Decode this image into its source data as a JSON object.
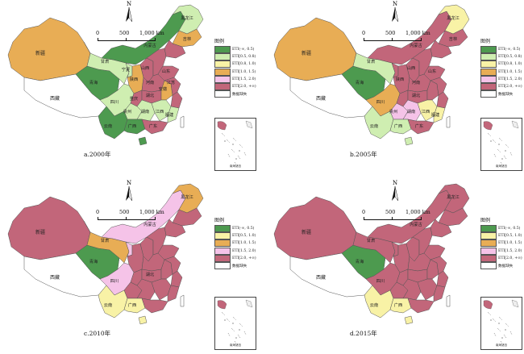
{
  "colors": {
    "class_a": "#4d9a4f",
    "class_b": "#cfeeb1",
    "class_c": "#f8f2a6",
    "class_d": "#e8ad55",
    "class_e": "#f5c3e8",
    "class_f": "#c2667a",
    "missing": "#ffffff",
    "water": "#f2f2f2"
  },
  "scale": {
    "zero": "0",
    "mid": "500",
    "end": "1,000 km"
  },
  "north": "N",
  "inset_title": "南海诸岛",
  "panels": [
    {
      "caption": "a.2000年",
      "legend_title": "图例",
      "legend": [
        {
          "label": "ETI(-∞, 0.5)",
          "color_key": "class_a"
        },
        {
          "label": "ETI[0.5, 0.8)",
          "color_key": "class_b"
        },
        {
          "label": "ETI[0.8, 1.0)",
          "color_key": "class_c"
        },
        {
          "label": "ETI[1.0, 1.5)",
          "color_key": "class_d"
        },
        {
          "label": "ETI[1.5, 2.0)",
          "color_key": "class_e"
        },
        {
          "label": "ETI[2.0, +∞)",
          "color_key": "class_f"
        },
        {
          "label": "数据缺失",
          "color_key": "missing"
        }
      ],
      "provinces": {
        "xinjiang": "class_d",
        "xizang": "class_w",
        "qinghai": "class_a",
        "gansu": "class_b",
        "neimenggu": "class_a",
        "heilongjiang": "class_b",
        "jilin": "class_d",
        "liaoning": "class_f",
        "ningxia": "class_b",
        "shaanxi": "class_d",
        "shanxi": "class_f",
        "hebei": "class_f",
        "henan": "class_f",
        "shandong": "class_f",
        "sichuan": "class_b",
        "chongqing": "class_f",
        "hubei": "class_f",
        "hunan": "class_b",
        "guizhou": "class_b",
        "yunnan": "class_a",
        "guangxi": "class_a",
        "guangdong": "class_f",
        "jiangxi": "class_b",
        "anhui": "class_d",
        "jiangsu": "class_f",
        "zhejiang": "class_f",
        "fujian": "class_b",
        "hainan": "class_a",
        "taiwan": "class_w"
      },
      "labels": [
        {
          "key": "xinjiang",
          "text": "新疆"
        },
        {
          "key": "xizang",
          "text": "西藏"
        },
        {
          "key": "qinghai",
          "text": "青海"
        },
        {
          "key": "gansu",
          "text": "甘肃"
        },
        {
          "key": "neimenggu",
          "text": "内蒙古"
        },
        {
          "key": "heilongjiang",
          "text": "黑龙江"
        },
        {
          "key": "jilin",
          "text": "吉林"
        },
        {
          "key": "ningxia",
          "text": "宁夏"
        },
        {
          "key": "shaanxi",
          "text": "陕西"
        },
        {
          "key": "shanxi",
          "text": "山西"
        },
        {
          "key": "shandong",
          "text": "山东"
        },
        {
          "key": "henan",
          "text": "河南"
        },
        {
          "key": "sichuan",
          "text": "四川"
        },
        {
          "key": "chongqing",
          "text": "重庆"
        },
        {
          "key": "hubei",
          "text": "湖北"
        },
        {
          "key": "anhui",
          "text": "安徽"
        },
        {
          "key": "jiangsu",
          "text": "江苏"
        },
        {
          "key": "guizhou",
          "text": "贵州"
        },
        {
          "key": "hunan",
          "text": "湖南"
        },
        {
          "key": "jiangxi",
          "text": "江西"
        },
        {
          "key": "fujian",
          "text": "福建"
        },
        {
          "key": "yunnan",
          "text": "云南"
        },
        {
          "key": "guangxi",
          "text": "广西"
        },
        {
          "key": "guangdong",
          "text": "广东"
        }
      ]
    },
    {
      "caption": "b.2005年",
      "legend_title": "图例",
      "legend": [
        {
          "label": "ETI(-∞, 0.5)",
          "color_key": "class_a"
        },
        {
          "label": "ETI[0.5, 0.8)",
          "color_key": "class_b"
        },
        {
          "label": "ETI[0.8, 1.0)",
          "color_key": "class_c"
        },
        {
          "label": "ETI[1.0, 1.5)",
          "color_key": "class_d"
        },
        {
          "label": "ETI[1.5, 2.0)",
          "color_key": "class_e"
        },
        {
          "label": "ETI[2.0, +∞)",
          "color_key": "class_f"
        },
        {
          "label": "数据缺失",
          "color_key": "missing"
        }
      ],
      "provinces": {
        "xinjiang": "class_d",
        "xizang": "class_w",
        "qinghai": "class_a",
        "gansu": "class_b",
        "neimenggu": "class_f",
        "heilongjiang": "class_c",
        "jilin": "class_f",
        "liaoning": "class_f",
        "ningxia": "class_f",
        "shaanxi": "class_f",
        "shanxi": "class_f",
        "hebei": "class_f",
        "henan": "class_f",
        "shandong": "class_f",
        "sichuan": "class_d",
        "chongqing": "class_f",
        "hubei": "class_f",
        "hunan": "class_e",
        "guizhou": "class_e",
        "yunnan": "class_b",
        "guangxi": "class_b",
        "guangdong": "class_f",
        "jiangxi": "class_c",
        "anhui": "class_f",
        "jiangsu": "class_f",
        "zhejiang": "class_f",
        "fujian": "class_c",
        "hainan": "class_b",
        "taiwan": "class_w"
      },
      "labels": [
        {
          "key": "xinjiang",
          "text": "新疆"
        },
        {
          "key": "xizang",
          "text": "西藏"
        },
        {
          "key": "qinghai",
          "text": "青海"
        },
        {
          "key": "gansu",
          "text": "甘肃"
        },
        {
          "key": "neimenggu",
          "text": "内蒙古"
        },
        {
          "key": "heilongjiang",
          "text": "黑龙江"
        },
        {
          "key": "jilin",
          "text": "吉林"
        },
        {
          "key": "shaanxi",
          "text": "陕西"
        },
        {
          "key": "shanxi",
          "text": "山西"
        },
        {
          "key": "shandong",
          "text": "山东"
        },
        {
          "key": "henan",
          "text": "河南"
        },
        {
          "key": "sichuan",
          "text": "四川"
        },
        {
          "key": "hubei",
          "text": "湖北"
        },
        {
          "key": "guizhou",
          "text": "贵州"
        },
        {
          "key": "hunan",
          "text": "湖南"
        },
        {
          "key": "jiangxi",
          "text": "江西"
        },
        {
          "key": "fujian",
          "text": "福建"
        },
        {
          "key": "yunnan",
          "text": "云南"
        },
        {
          "key": "guangxi",
          "text": "广西"
        },
        {
          "key": "guangdong",
          "text": "广东"
        }
      ]
    },
    {
      "caption": "c.2010年",
      "legend_title": "图例",
      "legend": [
        {
          "label": "ETI(-∞, 0.5)",
          "color_key": "class_a"
        },
        {
          "label": "ETI[0.5, 1.0)",
          "color_key": "class_c"
        },
        {
          "label": "ETI[1.0, 1.5)",
          "color_key": "class_d"
        },
        {
          "label": "ETI[1.5, 2.0)",
          "color_key": "class_e"
        },
        {
          "label": "ETI[2.0, +∞)",
          "color_key": "class_f"
        },
        {
          "label": "数据缺失",
          "color_key": "missing"
        }
      ],
      "provinces": {
        "xinjiang": "class_f",
        "xizang": "class_w",
        "qinghai": "class_a",
        "gansu": "class_d",
        "neimenggu": "class_e",
        "heilongjiang": "class_d",
        "jilin": "class_f",
        "liaoning": "class_f",
        "ningxia": "class_e",
        "shaanxi": "class_f",
        "shanxi": "class_f",
        "hebei": "class_f",
        "henan": "class_f",
        "shandong": "class_f",
        "sichuan": "class_e",
        "chongqing": "class_f",
        "hubei": "class_f",
        "hunan": "class_f",
        "guizhou": "class_f",
        "yunnan": "class_c",
        "guangxi": "class_c",
        "guangdong": "class_f",
        "jiangxi": "class_f",
        "anhui": "class_f",
        "jiangsu": "class_f",
        "zhejiang": "class_f",
        "fujian": "class_f",
        "hainan": "class_c",
        "taiwan": "class_w"
      },
      "labels": [
        {
          "key": "xinjiang",
          "text": "新疆"
        },
        {
          "key": "xizang",
          "text": "西藏"
        },
        {
          "key": "qinghai",
          "text": "青海"
        },
        {
          "key": "gansu",
          "text": "甘肃"
        },
        {
          "key": "neimenggu",
          "text": "内蒙古"
        },
        {
          "key": "heilongjiang",
          "text": "黑龙江"
        },
        {
          "key": "sichuan",
          "text": "四川"
        },
        {
          "key": "hubei",
          "text": "湖北"
        },
        {
          "key": "yunnan",
          "text": "云南"
        },
        {
          "key": "guangxi",
          "text": "广西"
        }
      ]
    },
    {
      "caption": "d.2015年",
      "legend_title": "图例",
      "legend": [
        {
          "label": "ETI(-∞, 0.5)",
          "color_key": "class_a"
        },
        {
          "label": "ETI[0.5, 1.0)",
          "color_key": "class_c"
        },
        {
          "label": "ETI[1.0, 1.5)",
          "color_key": "class_d"
        },
        {
          "label": "ETI[1.5, 2.0)",
          "color_key": "class_e"
        },
        {
          "label": "ETI[2.0, +∞)",
          "color_key": "class_f"
        },
        {
          "label": "数据缺失",
          "color_key": "missing"
        }
      ],
      "provinces": {
        "xinjiang": "class_f",
        "xizang": "class_w",
        "qinghai": "class_a",
        "gansu": "class_f",
        "neimenggu": "class_f",
        "heilongjiang": "class_f",
        "jilin": "class_f",
        "liaoning": "class_f",
        "ningxia": "class_f",
        "shaanxi": "class_f",
        "shanxi": "class_f",
        "hebei": "class_f",
        "henan": "class_f",
        "shandong": "class_f",
        "sichuan": "class_f",
        "chongqing": "class_f",
        "hubei": "class_f",
        "hunan": "class_f",
        "guizhou": "class_f",
        "yunnan": "class_c",
        "guangxi": "class_c",
        "guangdong": "class_f",
        "jiangxi": "class_f",
        "anhui": "class_f",
        "jiangsu": "class_f",
        "zhejiang": "class_f",
        "fujian": "class_f",
        "hainan": "class_c",
        "taiwan": "class_w"
      },
      "labels": [
        {
          "key": "xinjiang",
          "text": "新疆"
        },
        {
          "key": "xizang",
          "text": "西藏"
        },
        {
          "key": "qinghai",
          "text": "青海"
        },
        {
          "key": "gansu",
          "text": "甘肃"
        },
        {
          "key": "neimenggu",
          "text": "内蒙古"
        },
        {
          "key": "heilongjiang",
          "text": "黑龙江"
        },
        {
          "key": "sichuan",
          "text": "四川"
        },
        {
          "key": "yunnan",
          "text": "云南"
        },
        {
          "key": "guangxi",
          "text": "广西"
        }
      ]
    }
  ]
}
